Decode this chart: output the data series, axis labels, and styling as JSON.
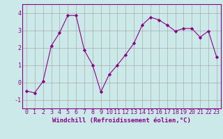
{
  "x": [
    0,
    1,
    2,
    3,
    4,
    5,
    6,
    7,
    8,
    9,
    10,
    11,
    12,
    13,
    14,
    15,
    16,
    17,
    18,
    19,
    20,
    21,
    22,
    23
  ],
  "y": [
    -0.5,
    -0.6,
    0.05,
    2.1,
    2.85,
    3.85,
    3.85,
    1.85,
    1.0,
    -0.55,
    0.45,
    1.0,
    1.6,
    2.25,
    3.3,
    3.75,
    3.6,
    3.3,
    2.95,
    3.1,
    3.1,
    2.6,
    2.95,
    1.45
  ],
  "line_color": "#880088",
  "marker": "D",
  "marker_size": 2.2,
  "bg_color": "#cce9e9",
  "grid_color": "#aaaaaa",
  "xlabel": "Windchill (Refroidissement éolien,°C)",
  "xlabel_fontsize": 6.5,
  "tick_fontsize": 6.0,
  "ylim": [
    -1.5,
    4.5
  ],
  "xlim": [
    -0.5,
    23.5
  ],
  "yticks": [
    -1,
    0,
    1,
    2,
    3,
    4
  ],
  "xtick_labels": [
    "0",
    "1",
    "2",
    "3",
    "4",
    "5",
    "6",
    "7",
    "8",
    "9",
    "10",
    "11",
    "12",
    "13",
    "14",
    "15",
    "16",
    "17",
    "18",
    "19",
    "20",
    "21",
    "22",
    "23"
  ]
}
